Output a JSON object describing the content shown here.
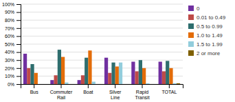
{
  "chart_data": {
    "type": "bar",
    "categories": [
      "Bus",
      "Commuter Rail",
      "Boat",
      "Silver Line",
      "Rapid Transit",
      "TOTAL"
    ],
    "series": [
      {
        "name": "0",
        "color": "#7030a0",
        "values": [
          38,
          5,
          5,
          33,
          28,
          28
        ]
      },
      {
        "name": "0.01 to 0.49",
        "color": "#be4b48",
        "values": [
          20,
          11,
          11,
          14,
          16,
          16
        ]
      },
      {
        "name": "0.5 to 0.99",
        "color": "#2e6e6e",
        "values": [
          25,
          43,
          33,
          27,
          30,
          29
        ]
      },
      {
        "name": "1.0 to 1.49",
        "color": "#e36c09",
        "values": [
          14,
          34,
          42,
          22,
          20,
          20
        ]
      },
      {
        "name": "1.5 to 1.99",
        "color": "#92cddc",
        "values": [
          0,
          2,
          3,
          27,
          1,
          1
        ]
      },
      {
        "name": "2 or more",
        "color": "#7f6000",
        "values": [
          0,
          0,
          0,
          0,
          0,
          1
        ]
      }
    ],
    "ylim": [
      0,
      100
    ],
    "yticks": [
      {
        "value": 0,
        "label": "0%"
      },
      {
        "value": 10,
        "label": "10%"
      },
      {
        "value": 20,
        "label": "20%"
      },
      {
        "value": 30,
        "label": "30%"
      },
      {
        "value": 40,
        "label": "40%"
      },
      {
        "value": 50,
        "label": "50%"
      },
      {
        "value": 60,
        "label": "60%"
      },
      {
        "value": 70,
        "label": "70%"
      },
      {
        "value": 80,
        "label": "80%"
      },
      {
        "value": 90,
        "label": "90%"
      },
      {
        "value": 100,
        "label": "100%"
      }
    ],
    "grid": true,
    "legend": "right"
  }
}
